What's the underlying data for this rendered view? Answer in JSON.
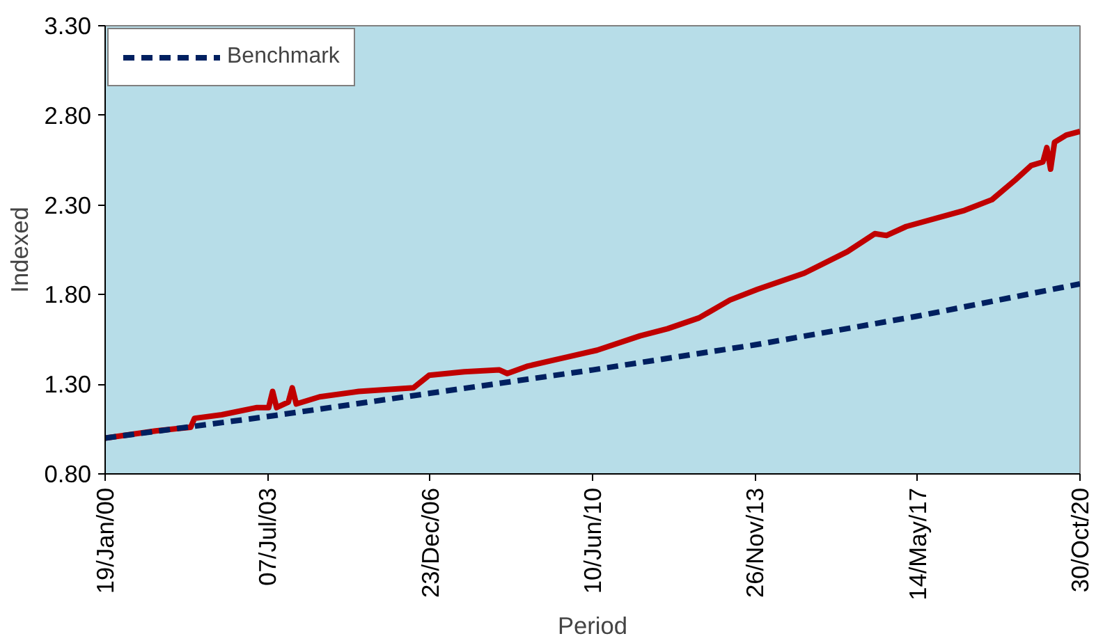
{
  "chart_data": {
    "type": "line",
    "xlabel": "Period",
    "ylabel": "Indexed",
    "legend": "top left",
    "grid": false,
    "ylim": [
      0.8,
      3.3
    ],
    "yticks": [
      {
        "value": 0.8,
        "label": "0.80"
      },
      {
        "value": 1.3,
        "label": "1.30"
      },
      {
        "value": 1.8,
        "label": "1.80"
      },
      {
        "value": 2.3,
        "label": "2.30"
      },
      {
        "value": 2.8,
        "label": "2.80"
      },
      {
        "value": 3.3,
        "label": "3.30"
      }
    ],
    "xlim": [
      "2000-01-19",
      "2020-10-30"
    ],
    "xticks": [
      {
        "value": "2000-01-19",
        "label": "19/Jan/00"
      },
      {
        "value": "2003-07-07",
        "label": "07/Jul/03"
      },
      {
        "value": "2006-12-23",
        "label": "23/Dec/06"
      },
      {
        "value": "2010-06-10",
        "label": "10/Jun/10"
      },
      {
        "value": "2013-11-26",
        "label": "26/Nov/13"
      },
      {
        "value": "2017-05-14",
        "label": "14/May/17"
      },
      {
        "value": "2020-10-30",
        "label": "30/Oct/20"
      }
    ],
    "series": [
      {
        "color": "#c00000",
        "line_style": "solid",
        "x": [
          "2000-01-19",
          "2001-02",
          "2001-11",
          "2001-12",
          "2002-07",
          "2003-04",
          "2003-07",
          "2003-08",
          "2003-09",
          "2003-12",
          "2004-01",
          "2004-02",
          "2004-08",
          "2005-06",
          "2006-08",
          "2006-12",
          "2007-09",
          "2008-06",
          "2008-08",
          "2009-01",
          "2009-07",
          "2010-07",
          "2011-06",
          "2012-01",
          "2012-09",
          "2013-05",
          "2013-12",
          "2014-12",
          "2015-11",
          "2016-06",
          "2016-09",
          "2017-02",
          "2018-05",
          "2018-12",
          "2019-06",
          "2019-10",
          "2020-01",
          "2020-02",
          "2020-03",
          "2020-04",
          "2020-07",
          "2020-10-30"
        ],
        "values": [
          1.0,
          1.04,
          1.06,
          1.11,
          1.13,
          1.17,
          1.17,
          1.26,
          1.17,
          1.2,
          1.28,
          1.19,
          1.23,
          1.26,
          1.28,
          1.35,
          1.37,
          1.38,
          1.36,
          1.4,
          1.43,
          1.49,
          1.57,
          1.61,
          1.67,
          1.77,
          1.83,
          1.92,
          2.04,
          2.14,
          2.13,
          2.18,
          2.27,
          2.33,
          2.44,
          2.52,
          2.54,
          2.62,
          2.5,
          2.65,
          2.69,
          2.71
        ]
      },
      {
        "name": "Benchmark",
        "color": "#002060",
        "line_style": "dashed",
        "x": [
          "2000-01-19",
          "2003-07-07",
          "2006-12-23",
          "2010-06-10",
          "2013-11-26",
          "2017-05-14",
          "2020-10-30"
        ],
        "values": [
          1.0,
          1.12,
          1.25,
          1.38,
          1.52,
          1.68,
          1.86
        ]
      }
    ]
  }
}
